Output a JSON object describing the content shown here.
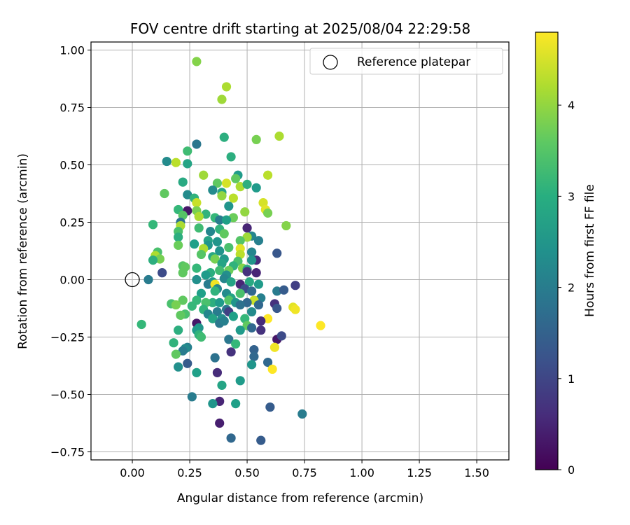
{
  "chart_data": {
    "type": "scatter",
    "title": "FOV centre drift starting at 2025/08/04 22:29:58",
    "xlabel": "Angular distance from reference (arcmin)",
    "ylabel": "Rotation from reference (arcmin)",
    "xlim": [
      -0.18,
      1.64
    ],
    "ylim": [
      -0.785,
      1.035
    ],
    "x_ticks": [
      0.0,
      0.25,
      0.5,
      0.75,
      1.0,
      1.25,
      1.5
    ],
    "x_tick_labels": [
      "0.00",
      "0.25",
      "0.50",
      "0.75",
      "1.00",
      "1.25",
      "1.50"
    ],
    "y_ticks": [
      -0.75,
      -0.5,
      -0.25,
      0.0,
      0.25,
      0.5,
      0.75,
      1.0
    ],
    "y_tick_labels": [
      "−0.75",
      "−0.50",
      "−0.25",
      "0.00",
      "0.25",
      "0.50",
      "0.75",
      "1.00"
    ],
    "grid": true,
    "legend": {
      "placement": "top-right",
      "entries": [
        {
          "label": "Reference platepar",
          "marker": "open-circle"
        }
      ]
    },
    "colorbar": {
      "label": "Hours from first FF file",
      "min": 0,
      "max": 4.8,
      "ticks": [
        0,
        1,
        2,
        3,
        4
      ],
      "tick_labels": [
        "0",
        "1",
        "2",
        "3",
        "4"
      ],
      "colormap": "viridis"
    },
    "reference_point": {
      "x": 0.0,
      "y": 0.0
    },
    "points": [
      {
        "x": 0.28,
        "y": 0.95,
        "c": 3.9
      },
      {
        "x": 0.41,
        "y": 0.84,
        "c": 4.2
      },
      {
        "x": 0.39,
        "y": 0.785,
        "c": 4.1
      },
      {
        "x": 0.64,
        "y": 0.625,
        "c": 4.2
      },
      {
        "x": 0.4,
        "y": 0.62,
        "c": 3.0
      },
      {
        "x": 0.54,
        "y": 0.61,
        "c": 3.8
      },
      {
        "x": 0.28,
        "y": 0.59,
        "c": 1.9
      },
      {
        "x": 0.24,
        "y": 0.56,
        "c": 3.3
      },
      {
        "x": 0.43,
        "y": 0.535,
        "c": 3.0
      },
      {
        "x": 0.15,
        "y": 0.515,
        "c": 2.3
      },
      {
        "x": 0.19,
        "y": 0.51,
        "c": 4.3
      },
      {
        "x": 0.24,
        "y": 0.505,
        "c": 2.8
      },
      {
        "x": 0.46,
        "y": 0.455,
        "c": 2.6
      },
      {
        "x": 0.31,
        "y": 0.455,
        "c": 4.1
      },
      {
        "x": 0.59,
        "y": 0.455,
        "c": 4.3
      },
      {
        "x": 0.45,
        "y": 0.44,
        "c": 3.6
      },
      {
        "x": 0.22,
        "y": 0.425,
        "c": 2.9
      },
      {
        "x": 0.37,
        "y": 0.42,
        "c": 3.6
      },
      {
        "x": 0.41,
        "y": 0.42,
        "c": 4.5
      },
      {
        "x": 0.47,
        "y": 0.405,
        "c": 4.2
      },
      {
        "x": 0.5,
        "y": 0.415,
        "c": 3.0
      },
      {
        "x": 0.54,
        "y": 0.4,
        "c": 2.6
      },
      {
        "x": 0.35,
        "y": 0.39,
        "c": 2.3
      },
      {
        "x": 0.39,
        "y": 0.38,
        "c": 2.8
      },
      {
        "x": 0.14,
        "y": 0.375,
        "c": 3.6
      },
      {
        "x": 0.24,
        "y": 0.37,
        "c": 2.3
      },
      {
        "x": 0.39,
        "y": 0.365,
        "c": 4.0
      },
      {
        "x": 0.44,
        "y": 0.355,
        "c": 4.3
      },
      {
        "x": 0.27,
        "y": 0.355,
        "c": 3.1
      },
      {
        "x": 0.57,
        "y": 0.335,
        "c": 4.5
      },
      {
        "x": 0.28,
        "y": 0.335,
        "c": 4.4
      },
      {
        "x": 0.42,
        "y": 0.32,
        "c": 2.5
      },
      {
        "x": 0.58,
        "y": 0.305,
        "c": 4.6
      },
      {
        "x": 0.2,
        "y": 0.305,
        "c": 3.2
      },
      {
        "x": 0.28,
        "y": 0.3,
        "c": 3.8
      },
      {
        "x": 0.24,
        "y": 0.3,
        "c": 0.3
      },
      {
        "x": 0.49,
        "y": 0.295,
        "c": 4.0
      },
      {
        "x": 0.59,
        "y": 0.29,
        "c": 3.8
      },
      {
        "x": 0.32,
        "y": 0.285,
        "c": 3.1
      },
      {
        "x": 0.22,
        "y": 0.28,
        "c": 3.5
      },
      {
        "x": 0.29,
        "y": 0.275,
        "c": 4.2
      },
      {
        "x": 0.36,
        "y": 0.27,
        "c": 3.2
      },
      {
        "x": 0.44,
        "y": 0.27,
        "c": 3.7
      },
      {
        "x": 0.38,
        "y": 0.26,
        "c": 2.0
      },
      {
        "x": 0.41,
        "y": 0.26,
        "c": 2.7
      },
      {
        "x": 0.21,
        "y": 0.25,
        "c": 1.8
      },
      {
        "x": 0.09,
        "y": 0.24,
        "c": 3.2
      },
      {
        "x": 0.21,
        "y": 0.235,
        "c": 4.2
      },
      {
        "x": 0.67,
        "y": 0.235,
        "c": 3.9
      },
      {
        "x": 0.5,
        "y": 0.225,
        "c": 0.5
      },
      {
        "x": 0.29,
        "y": 0.225,
        "c": 3.3
      },
      {
        "x": 0.38,
        "y": 0.22,
        "c": 3.1
      },
      {
        "x": 0.2,
        "y": 0.21,
        "c": 3.4
      },
      {
        "x": 0.34,
        "y": 0.21,
        "c": 2.2
      },
      {
        "x": 0.4,
        "y": 0.2,
        "c": 3.6
      },
      {
        "x": 0.52,
        "y": 0.19,
        "c": 2.2
      },
      {
        "x": 0.2,
        "y": 0.185,
        "c": 3.0
      },
      {
        "x": 0.5,
        "y": 0.185,
        "c": 4.1
      },
      {
        "x": 0.47,
        "y": 0.17,
        "c": 3.5
      },
      {
        "x": 0.55,
        "y": 0.17,
        "c": 2.1
      },
      {
        "x": 0.33,
        "y": 0.17,
        "c": 2.8
      },
      {
        "x": 0.37,
        "y": 0.165,
        "c": 2.5
      },
      {
        "x": 0.27,
        "y": 0.155,
        "c": 2.7
      },
      {
        "x": 0.2,
        "y": 0.15,
        "c": 3.7
      },
      {
        "x": 0.33,
        "y": 0.15,
        "c": 2.5
      },
      {
        "x": 0.42,
        "y": 0.14,
        "c": 3.4
      },
      {
        "x": 0.47,
        "y": 0.135,
        "c": 4.6
      },
      {
        "x": 0.31,
        "y": 0.135,
        "c": 4.2
      },
      {
        "x": 0.38,
        "y": 0.125,
        "c": 2.5
      },
      {
        "x": 0.52,
        "y": 0.12,
        "c": 2.2
      },
      {
        "x": 0.11,
        "y": 0.12,
        "c": 3.4
      },
      {
        "x": 0.63,
        "y": 0.115,
        "c": 1.3
      },
      {
        "x": 0.47,
        "y": 0.11,
        "c": 4.3
      },
      {
        "x": 0.3,
        "y": 0.11,
        "c": 3.5
      },
      {
        "x": 0.1,
        "y": 0.105,
        "c": 4.2
      },
      {
        "x": 0.35,
        "y": 0.1,
        "c": 2.9
      },
      {
        "x": 0.12,
        "y": 0.09,
        "c": 3.8
      },
      {
        "x": 0.36,
        "y": 0.09,
        "c": 3.8
      },
      {
        "x": 0.4,
        "y": 0.09,
        "c": 2.6
      },
      {
        "x": 0.54,
        "y": 0.085,
        "c": 0.6
      },
      {
        "x": 0.52,
        "y": 0.085,
        "c": 2.5
      },
      {
        "x": 0.09,
        "y": 0.085,
        "c": 3.0
      },
      {
        "x": 0.46,
        "y": 0.08,
        "c": 3.4
      },
      {
        "x": 0.39,
        "y": 0.07,
        "c": 2.8
      },
      {
        "x": 0.22,
        "y": 0.06,
        "c": 3.5
      },
      {
        "x": 0.44,
        "y": 0.06,
        "c": 3.1
      },
      {
        "x": 0.23,
        "y": 0.055,
        "c": 3.6
      },
      {
        "x": 0.28,
        "y": 0.05,
        "c": 3.2
      },
      {
        "x": 0.48,
        "y": 0.05,
        "c": 3.9
      },
      {
        "x": 0.5,
        "y": 0.045,
        "c": 2.9
      },
      {
        "x": 0.38,
        "y": 0.04,
        "c": 3.3
      },
      {
        "x": 0.42,
        "y": 0.04,
        "c": 3.7
      },
      {
        "x": 0.5,
        "y": 0.035,
        "c": 0.7
      },
      {
        "x": 0.13,
        "y": 0.03,
        "c": 1.1
      },
      {
        "x": 0.22,
        "y": 0.03,
        "c": 3.6
      },
      {
        "x": 0.34,
        "y": 0.03,
        "c": 3.0
      },
      {
        "x": 0.54,
        "y": 0.03,
        "c": 0.5
      },
      {
        "x": 0.32,
        "y": 0.02,
        "c": 2.6
      },
      {
        "x": 0.41,
        "y": 0.02,
        "c": 2.4
      },
      {
        "x": 0.4,
        "y": 0.005,
        "c": 2.2
      },
      {
        "x": 0.07,
        "y": 0.0,
        "c": 2.0
      },
      {
        "x": 0.28,
        "y": 0.0,
        "c": 2.4
      },
      {
        "x": 0.35,
        "y": -0.01,
        "c": 2.6
      },
      {
        "x": 0.43,
        "y": -0.01,
        "c": 2.8
      },
      {
        "x": 0.51,
        "y": -0.01,
        "c": 2.9
      },
      {
        "x": 0.33,
        "y": -0.02,
        "c": 2.0
      },
      {
        "x": 0.47,
        "y": -0.02,
        "c": 0.5
      },
      {
        "x": 0.55,
        "y": -0.02,
        "c": 2.6
      },
      {
        "x": 0.36,
        "y": -0.02,
        "c": 4.7
      },
      {
        "x": 0.71,
        "y": -0.025,
        "c": 0.9
      },
      {
        "x": 0.37,
        "y": -0.04,
        "c": 2.2
      },
      {
        "x": 0.49,
        "y": -0.04,
        "c": 1.1
      },
      {
        "x": 0.63,
        "y": -0.05,
        "c": 2.0
      },
      {
        "x": 0.66,
        "y": -0.045,
        "c": 1.4
      },
      {
        "x": 0.36,
        "y": -0.05,
        "c": 3.1
      },
      {
        "x": 0.52,
        "y": -0.05,
        "c": 1.6
      },
      {
        "x": 0.3,
        "y": -0.06,
        "c": 2.7
      },
      {
        "x": 0.41,
        "y": -0.06,
        "c": 2.3
      },
      {
        "x": 0.47,
        "y": -0.06,
        "c": 3.4
      },
      {
        "x": 0.43,
        "y": -0.08,
        "c": 2.8
      },
      {
        "x": 0.56,
        "y": -0.08,
        "c": 2.1
      },
      {
        "x": 0.53,
        "y": -0.09,
        "c": 4.4
      },
      {
        "x": 0.22,
        "y": -0.09,
        "c": 3.6
      },
      {
        "x": 0.28,
        "y": -0.09,
        "c": 3.2
      },
      {
        "x": 0.42,
        "y": -0.09,
        "c": 3.5
      },
      {
        "x": 0.35,
        "y": -0.1,
        "c": 3.0
      },
      {
        "x": 0.5,
        "y": -0.1,
        "c": 1.6
      },
      {
        "x": 0.38,
        "y": -0.1,
        "c": 2.6
      },
      {
        "x": 0.32,
        "y": -0.1,
        "c": 3.4
      },
      {
        "x": 0.17,
        "y": -0.105,
        "c": 3.4
      },
      {
        "x": 0.62,
        "y": -0.105,
        "c": 0.7
      },
      {
        "x": 0.45,
        "y": -0.1,
        "c": 2.5
      },
      {
        "x": 0.47,
        "y": -0.11,
        "c": 1.8
      },
      {
        "x": 0.19,
        "y": -0.11,
        "c": 3.8
      },
      {
        "x": 0.55,
        "y": -0.11,
        "c": 1.6
      },
      {
        "x": 0.26,
        "y": -0.115,
        "c": 3.2
      },
      {
        "x": 0.7,
        "y": -0.12,
        "c": 4.6
      },
      {
        "x": 0.71,
        "y": -0.13,
        "c": 4.7
      },
      {
        "x": 0.63,
        "y": -0.125,
        "c": 1.3
      },
      {
        "x": 0.31,
        "y": -0.13,
        "c": 3.1
      },
      {
        "x": 0.41,
        "y": -0.13,
        "c": 1.9
      },
      {
        "x": 0.37,
        "y": -0.14,
        "c": 2.0
      },
      {
        "x": 0.42,
        "y": -0.14,
        "c": 0.9
      },
      {
        "x": 0.52,
        "y": -0.14,
        "c": 2.3
      },
      {
        "x": 0.23,
        "y": -0.15,
        "c": 3.4
      },
      {
        "x": 0.33,
        "y": -0.15,
        "c": 2.2
      },
      {
        "x": 0.21,
        "y": -0.155,
        "c": 3.6
      },
      {
        "x": 0.44,
        "y": -0.16,
        "c": 2.7
      },
      {
        "x": 0.59,
        "y": -0.17,
        "c": 4.8
      },
      {
        "x": 0.35,
        "y": -0.17,
        "c": 2.8
      },
      {
        "x": 0.39,
        "y": -0.17,
        "c": 2.4
      },
      {
        "x": 0.49,
        "y": -0.17,
        "c": 3.2
      },
      {
        "x": 0.28,
        "y": -0.19,
        "c": 0.3
      },
      {
        "x": 0.38,
        "y": -0.19,
        "c": 1.9
      },
      {
        "x": 0.4,
        "y": -0.18,
        "c": 2.1
      },
      {
        "x": 0.56,
        "y": -0.18,
        "c": 0.6
      },
      {
        "x": 0.5,
        "y": -0.2,
        "c": 3.6
      },
      {
        "x": 0.29,
        "y": -0.21,
        "c": 2.5
      },
      {
        "x": 0.52,
        "y": -0.21,
        "c": 1.6
      },
      {
        "x": 0.56,
        "y": -0.22,
        "c": 0.7
      },
      {
        "x": 0.47,
        "y": -0.22,
        "c": 2.6
      },
      {
        "x": 0.82,
        "y": -0.2,
        "c": 4.8
      },
      {
        "x": 0.2,
        "y": -0.22,
        "c": 3.0
      },
      {
        "x": 0.28,
        "y": -0.22,
        "c": 2.6
      },
      {
        "x": 0.29,
        "y": -0.24,
        "c": 3.1
      },
      {
        "x": 0.3,
        "y": -0.25,
        "c": 3.3
      },
      {
        "x": 0.04,
        "y": -0.195,
        "c": 3.2
      },
      {
        "x": 0.63,
        "y": -0.26,
        "c": 0.3
      },
      {
        "x": 0.65,
        "y": -0.245,
        "c": 1.1
      },
      {
        "x": 0.42,
        "y": -0.26,
        "c": 1.9
      },
      {
        "x": 0.18,
        "y": -0.275,
        "c": 3.1
      },
      {
        "x": 0.45,
        "y": -0.28,
        "c": 3.2
      },
      {
        "x": 0.62,
        "y": -0.295,
        "c": 4.7
      },
      {
        "x": 0.24,
        "y": -0.295,
        "c": 2.1
      },
      {
        "x": 0.23,
        "y": -0.3,
        "c": 2.3
      },
      {
        "x": 0.22,
        "y": -0.31,
        "c": 2.0
      },
      {
        "x": 0.53,
        "y": -0.305,
        "c": 1.5
      },
      {
        "x": 0.19,
        "y": -0.325,
        "c": 3.6
      },
      {
        "x": 0.43,
        "y": -0.315,
        "c": 0.7
      },
      {
        "x": 0.53,
        "y": -0.335,
        "c": 1.6
      },
      {
        "x": 0.36,
        "y": -0.34,
        "c": 1.8
      },
      {
        "x": 0.24,
        "y": -0.365,
        "c": 1.4
      },
      {
        "x": 0.52,
        "y": -0.37,
        "c": 2.5
      },
      {
        "x": 0.59,
        "y": -0.36,
        "c": 1.6
      },
      {
        "x": 0.2,
        "y": -0.38,
        "c": 2.4
      },
      {
        "x": 0.61,
        "y": -0.39,
        "c": 4.8
      },
      {
        "x": 0.28,
        "y": -0.405,
        "c": 2.7
      },
      {
        "x": 0.37,
        "y": -0.405,
        "c": 0.6
      },
      {
        "x": 0.47,
        "y": -0.44,
        "c": 2.6
      },
      {
        "x": 0.39,
        "y": -0.46,
        "c": 2.8
      },
      {
        "x": 0.26,
        "y": -0.51,
        "c": 2.0
      },
      {
        "x": 0.38,
        "y": -0.53,
        "c": 0.5
      },
      {
        "x": 0.35,
        "y": -0.54,
        "c": 2.5
      },
      {
        "x": 0.45,
        "y": -0.54,
        "c": 2.7
      },
      {
        "x": 0.6,
        "y": -0.555,
        "c": 1.4
      },
      {
        "x": 0.74,
        "y": -0.585,
        "c": 2.0
      },
      {
        "x": 0.38,
        "y": -0.625,
        "c": 0.4
      },
      {
        "x": 0.43,
        "y": -0.69,
        "c": 1.6
      },
      {
        "x": 0.56,
        "y": -0.7,
        "c": 1.4
      }
    ]
  }
}
